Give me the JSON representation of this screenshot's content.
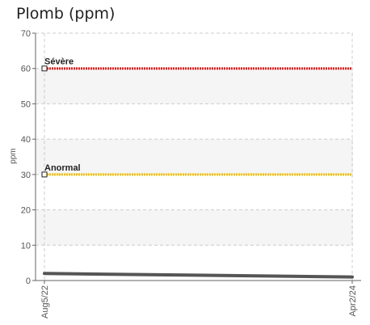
{
  "chart_data": {
    "type": "line",
    "title": "Plomb (ppm)",
    "xlabel": "",
    "ylabel": "ppm",
    "ylim": [
      0,
      70
    ],
    "yticks": [
      "0",
      "10",
      "20",
      "30",
      "40",
      "50",
      "60",
      "70"
    ],
    "x_labels": [
      "Aug5/22",
      "Apr2/24"
    ],
    "series": [
      {
        "values": [
          2,
          1
        ],
        "color": "#555555"
      }
    ],
    "thresholds": [
      {
        "label": "Sévère",
        "value": 60,
        "color": "#e02020"
      },
      {
        "label": "Anormal",
        "value": 30,
        "color": "#f0c000"
      }
    ],
    "grid": true,
    "bands": [
      [
        10,
        20
      ],
      [
        30,
        40
      ],
      [
        50,
        60
      ]
    ]
  }
}
